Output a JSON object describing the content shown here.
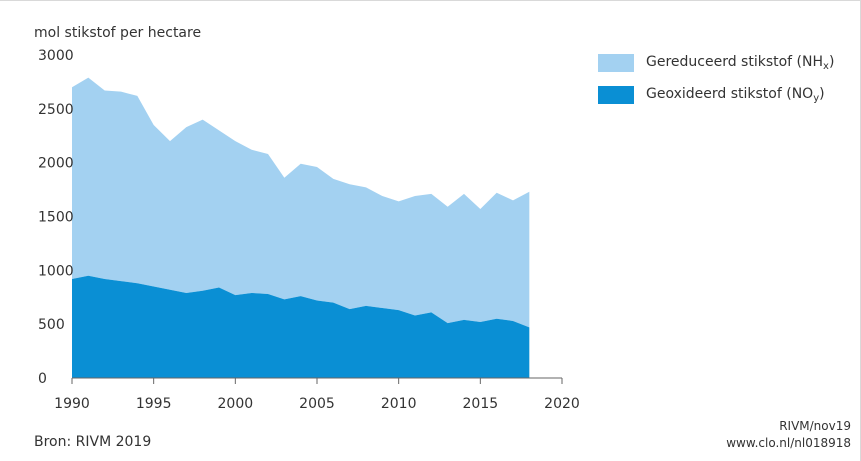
{
  "chart_data": {
    "type": "area",
    "stacked": true,
    "ylabel": "mol stikstof per hectare",
    "xlim": [
      1990,
      2020
    ],
    "ylim": [
      0,
      3000
    ],
    "xticks": [
      "1990",
      "1995",
      "2000",
      "2005",
      "2010",
      "2015",
      "2020"
    ],
    "yticks": [
      "0",
      "500",
      "1000",
      "1500",
      "2000",
      "2500",
      "3000"
    ],
    "x": [
      1990,
      1991,
      1992,
      1993,
      1994,
      1995,
      1996,
      1997,
      1998,
      1999,
      2000,
      2001,
      2002,
      2003,
      2004,
      2005,
      2006,
      2007,
      2008,
      2009,
      2010,
      2011,
      2012,
      2013,
      2014,
      2015,
      2016,
      2017,
      2018
    ],
    "series": [
      {
        "name": "Geoxideerd stikstof (NOy)",
        "label_main": "Geoxideerd stikstof (NO",
        "label_sub": "y",
        "label_tail": ")",
        "color": "#0a8fd4",
        "values": [
          920,
          950,
          920,
          900,
          880,
          850,
          820,
          790,
          810,
          840,
          770,
          790,
          780,
          730,
          760,
          720,
          700,
          640,
          670,
          650,
          630,
          580,
          610,
          510,
          540,
          520,
          550,
          530,
          470
        ]
      },
      {
        "name": "Gereduceerd stikstof (NHx)",
        "label_main": "Gereduceerd stikstof (NH",
        "label_sub": "x",
        "label_tail": ")",
        "color": "#a3d1f1",
        "values": [
          1780,
          1840,
          1750,
          1760,
          1740,
          1500,
          1380,
          1540,
          1590,
          1460,
          1430,
          1330,
          1300,
          1130,
          1230,
          1240,
          1150,
          1160,
          1100,
          1040,
          1010,
          1110,
          1100,
          1080,
          1170,
          1050,
          1170,
          1120,
          1260
        ]
      }
    ]
  },
  "footer": {
    "source": "Bron: RIVM 2019",
    "credit_line1": "RIVM/nov19",
    "credit_line2": "www.clo.nl/nl018918"
  }
}
